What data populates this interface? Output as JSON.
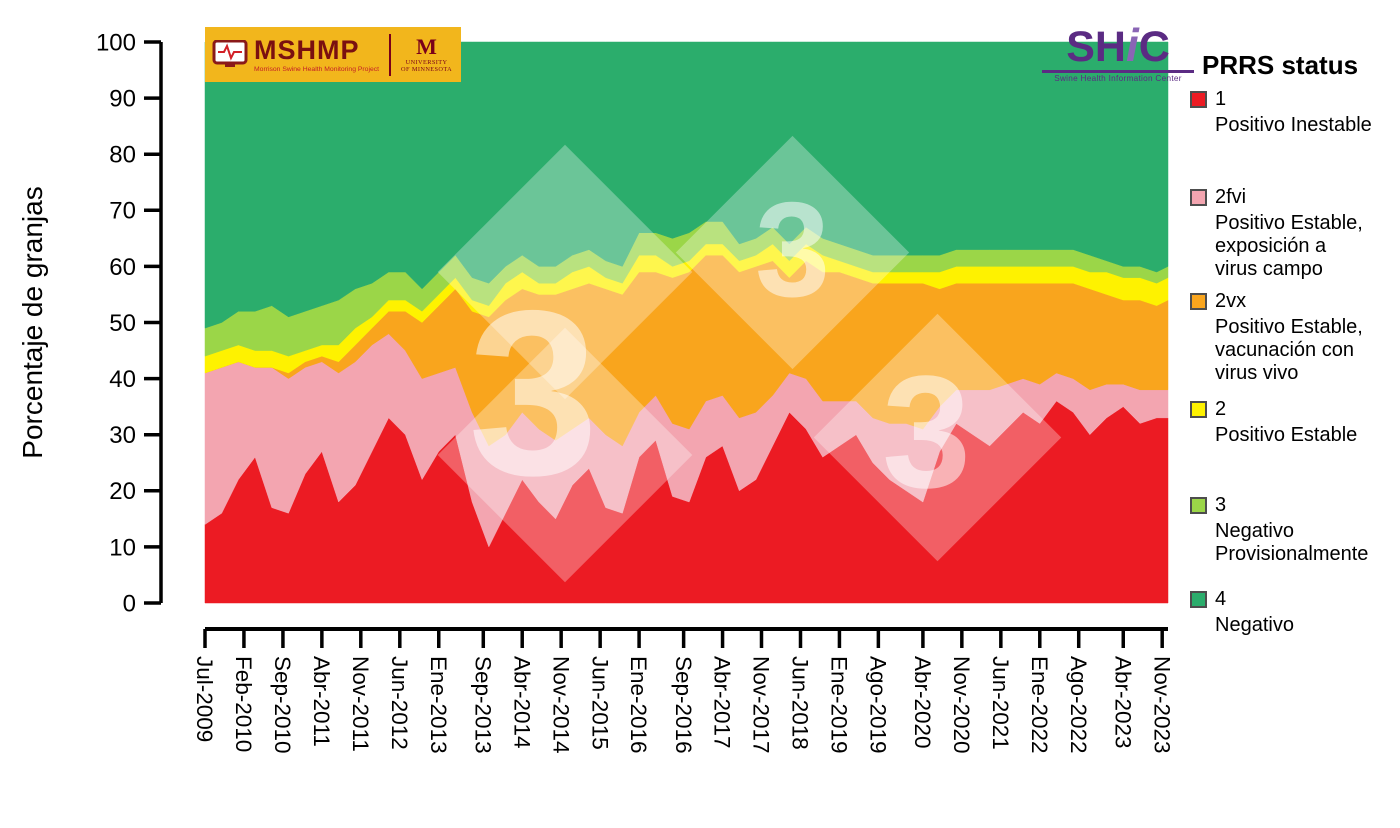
{
  "figure": {
    "watermark_text": "3",
    "logos": {
      "mshmp": {
        "title": "MSHMP",
        "subtitle": "Morrison Swine Health Monitoring Project",
        "umn_m": "M",
        "umn_line1": "UNIVERSITY",
        "umn_line2": "OF MINNESOTA"
      },
      "shic": {
        "sh": "SH",
        "i": "i",
        "c": "C",
        "caption": "Swine Health Information Center"
      }
    },
    "legend": {
      "title": "PRRS status",
      "items": [
        {
          "key": "1",
          "color": "#EC1B23",
          "lines": [
            "Positivo Inestable"
          ]
        },
        {
          "key": "2fvi",
          "color": "#F3A5B0",
          "lines": [
            "Positivo Estable,",
            "exposición a",
            "virus campo"
          ]
        },
        {
          "key": "2vx",
          "color": "#F9A51D",
          "lines": [
            "Positivo Estable,",
            "vacunación con",
            "virus vivo"
          ]
        },
        {
          "key": "2",
          "color": "#FEF200",
          "lines": [
            "Positivo Estable"
          ]
        },
        {
          "key": "3",
          "color": "#9BD648",
          "lines": [
            "Negativo",
            "Provisionalmente"
          ]
        },
        {
          "key": "4",
          "color": "#2BAD6C",
          "lines": [
            "Negativo"
          ]
        }
      ]
    }
  },
  "chart_data": {
    "type": "area",
    "stacked": true,
    "stack_total": 100,
    "ylabel": "Porcentaje de granjas",
    "ylim": [
      0,
      100
    ],
    "xlim": [
      2009.5,
      2023.92
    ],
    "grid": false,
    "legend_position": "right",
    "y_ticks": [
      0,
      10,
      20,
      30,
      40,
      50,
      60,
      70,
      80,
      90,
      100
    ],
    "x_ticks": [
      {
        "label": "Jul-2009",
        "x": 2009.5
      },
      {
        "label": "Feb-2010",
        "x": 2010.083
      },
      {
        "label": "Sep-2010",
        "x": 2010.667
      },
      {
        "label": "Abr-2011",
        "x": 2011.25
      },
      {
        "label": "Nov-2011",
        "x": 2011.833
      },
      {
        "label": "Jun-2012",
        "x": 2012.417
      },
      {
        "label": "Ene-2013",
        "x": 2013.0
      },
      {
        "label": "Sep-2013",
        "x": 2013.667
      },
      {
        "label": "Abr-2014",
        "x": 2014.25
      },
      {
        "label": "Nov-2014",
        "x": 2014.833
      },
      {
        "label": "Jun-2015",
        "x": 2015.417
      },
      {
        "label": "Ene-2016",
        "x": 2016.0
      },
      {
        "label": "Sep-2016",
        "x": 2016.667
      },
      {
        "label": "Abr-2017",
        "x": 2017.25
      },
      {
        "label": "Nov-2017",
        "x": 2017.833
      },
      {
        "label": "Jun-2018",
        "x": 2018.417
      },
      {
        "label": "Ene-2019",
        "x": 2019.0
      },
      {
        "label": "Ago-2019",
        "x": 2019.583
      },
      {
        "label": "Abr-2020",
        "x": 2020.25
      },
      {
        "label": "Nov-2020",
        "x": 2020.833
      },
      {
        "label": "Jun-2021",
        "x": 2021.417
      },
      {
        "label": "Ene-2022",
        "x": 2022.0
      },
      {
        "label": "Ago-2022",
        "x": 2022.583
      },
      {
        "label": "Abr-2023",
        "x": 2023.25
      },
      {
        "label": "Nov-2023",
        "x": 2023.833
      }
    ],
    "x": [
      2009.5,
      2009.75,
      2010.0,
      2010.25,
      2010.5,
      2010.75,
      2011.0,
      2011.25,
      2011.5,
      2011.75,
      2012.0,
      2012.25,
      2012.5,
      2012.75,
      2013.0,
      2013.25,
      2013.5,
      2013.75,
      2014.0,
      2014.25,
      2014.5,
      2014.75,
      2015.0,
      2015.25,
      2015.5,
      2015.75,
      2016.0,
      2016.25,
      2016.5,
      2016.75,
      2017.0,
      2017.25,
      2017.5,
      2017.75,
      2018.0,
      2018.25,
      2018.5,
      2018.75,
      2019.0,
      2019.25,
      2019.5,
      2019.75,
      2020.0,
      2020.25,
      2020.5,
      2020.75,
      2021.0,
      2021.25,
      2021.5,
      2021.75,
      2022.0,
      2022.25,
      2022.5,
      2022.75,
      2023.0,
      2023.25,
      2023.5,
      2023.75,
      2023.92
    ],
    "series": [
      {
        "key": "1",
        "label": "Positivo Inestable",
        "color": "#EC1B23",
        "values": [
          14,
          16,
          22,
          26,
          17,
          16,
          23,
          27,
          18,
          21,
          27,
          33,
          30,
          22,
          27,
          30,
          18,
          10,
          16,
          22,
          18,
          15,
          21,
          24,
          17,
          16,
          26,
          29,
          19,
          18,
          26,
          28,
          20,
          22,
          28,
          34,
          31,
          26,
          28,
          30,
          25,
          22,
          20,
          18,
          27,
          32,
          30,
          28,
          31,
          34,
          32,
          36,
          34,
          30,
          33,
          35,
          32,
          33,
          33
        ]
      },
      {
        "key": "2fvi",
        "label": "Positivo Estable, exposición a virus campo",
        "color": "#F3A5B0",
        "values": [
          27,
          26,
          21,
          16,
          25,
          24,
          19,
          16,
          23,
          22,
          19,
          15,
          15,
          18,
          14,
          12,
          16,
          18,
          14,
          12,
          13,
          14,
          10,
          9,
          13,
          12,
          8,
          8,
          13,
          13,
          10,
          9,
          13,
          12,
          9,
          7,
          9,
          10,
          8,
          6,
          8,
          10,
          12,
          13,
          8,
          6,
          8,
          10,
          8,
          6,
          7,
          5,
          6,
          8,
          6,
          4,
          6,
          5,
          5
        ]
      },
      {
        "key": "2vx",
        "label": "Positivo Estable, vacunación con virus vivo",
        "color": "#F9A51D",
        "values": [
          0,
          0,
          0,
          0,
          0,
          1,
          1,
          1,
          2,
          3,
          3,
          4,
          7,
          10,
          12,
          14,
          18,
          23,
          24,
          22,
          24,
          26,
          25,
          24,
          26,
          27,
          25,
          22,
          26,
          28,
          26,
          25,
          26,
          26,
          24,
          17,
          21,
          23,
          23,
          22,
          24,
          25,
          25,
          26,
          21,
          19,
          19,
          19,
          18,
          17,
          18,
          16,
          17,
          18,
          16,
          15,
          16,
          15,
          16
        ]
      },
      {
        "key": "2",
        "label": "Positivo Estable",
        "color": "#FEF200",
        "values": [
          3,
          3,
          3,
          3,
          3,
          3,
          2,
          2,
          3,
          3,
          2,
          2,
          2,
          2,
          2,
          2,
          2,
          2,
          3,
          3,
          2,
          2,
          3,
          3,
          2,
          2,
          3,
          3,
          2,
          2,
          2,
          2,
          2,
          2,
          3,
          3,
          3,
          3,
          2,
          2,
          2,
          2,
          2,
          2,
          3,
          3,
          3,
          3,
          3,
          3,
          3,
          3,
          3,
          3,
          4,
          4,
          4,
          4,
          4
        ]
      },
      {
        "key": "3",
        "label": "Negativo Provisionalmente",
        "color": "#9BD648",
        "values": [
          5,
          5,
          6,
          7,
          8,
          7,
          7,
          7,
          8,
          7,
          6,
          5,
          5,
          4,
          4,
          4,
          4,
          4,
          3,
          3,
          3,
          3,
          3,
          3,
          3,
          3,
          4,
          4,
          5,
          5,
          4,
          4,
          3,
          3,
          3,
          3,
          3,
          3,
          3,
          3,
          3,
          3,
          3,
          3,
          3,
          3,
          3,
          3,
          3,
          3,
          3,
          3,
          3,
          3,
          2,
          2,
          2,
          2,
          2
        ]
      },
      {
        "key": "4",
        "label": "Negativo",
        "color": "#2BAD6C",
        "remainder_to": 100
      }
    ]
  }
}
